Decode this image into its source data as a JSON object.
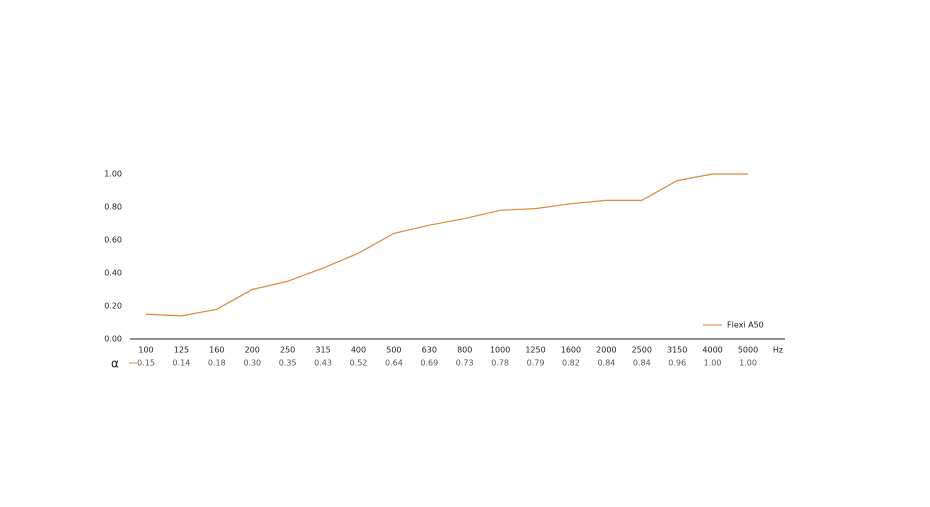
{
  "chart_data": {
    "type": "line",
    "categories": [
      "100",
      "125",
      "160",
      "200",
      "250",
      "315",
      "400",
      "500",
      "630",
      "800",
      "1000",
      "1250",
      "1600",
      "2000",
      "2500",
      "3150",
      "4000",
      "5000"
    ],
    "x_unit": "Hz",
    "value_symbol": "α",
    "series": [
      {
        "name": "Flexi A50",
        "color": "#d98a3a",
        "values": [
          0.15,
          0.14,
          0.18,
          0.3,
          0.35,
          0.43,
          0.52,
          0.64,
          0.69,
          0.73,
          0.78,
          0.79,
          0.82,
          0.84,
          0.84,
          0.96,
          1.0,
          1.0
        ],
        "value_labels": [
          "0.15",
          "0.14",
          "0.18",
          "0.30",
          "0.35",
          "0.43",
          "0.52",
          "0.64",
          "0.69",
          "0.73",
          "0.78",
          "0.79",
          "0.82",
          "0.84",
          "0.84",
          "0.96",
          "1.00",
          "1.00"
        ]
      }
    ],
    "ylim": [
      0,
      1
    ],
    "yticks": [
      {
        "value": 0,
        "label": "0.00"
      },
      {
        "value": 0.2,
        "label": "0.20"
      },
      {
        "value": 0.4,
        "label": "0.40"
      },
      {
        "value": 0.6,
        "label": "0.60"
      },
      {
        "value": 0.8,
        "label": "0.80"
      },
      {
        "value": 1,
        "label": "1.00"
      }
    ],
    "legend": "bottom-right"
  }
}
